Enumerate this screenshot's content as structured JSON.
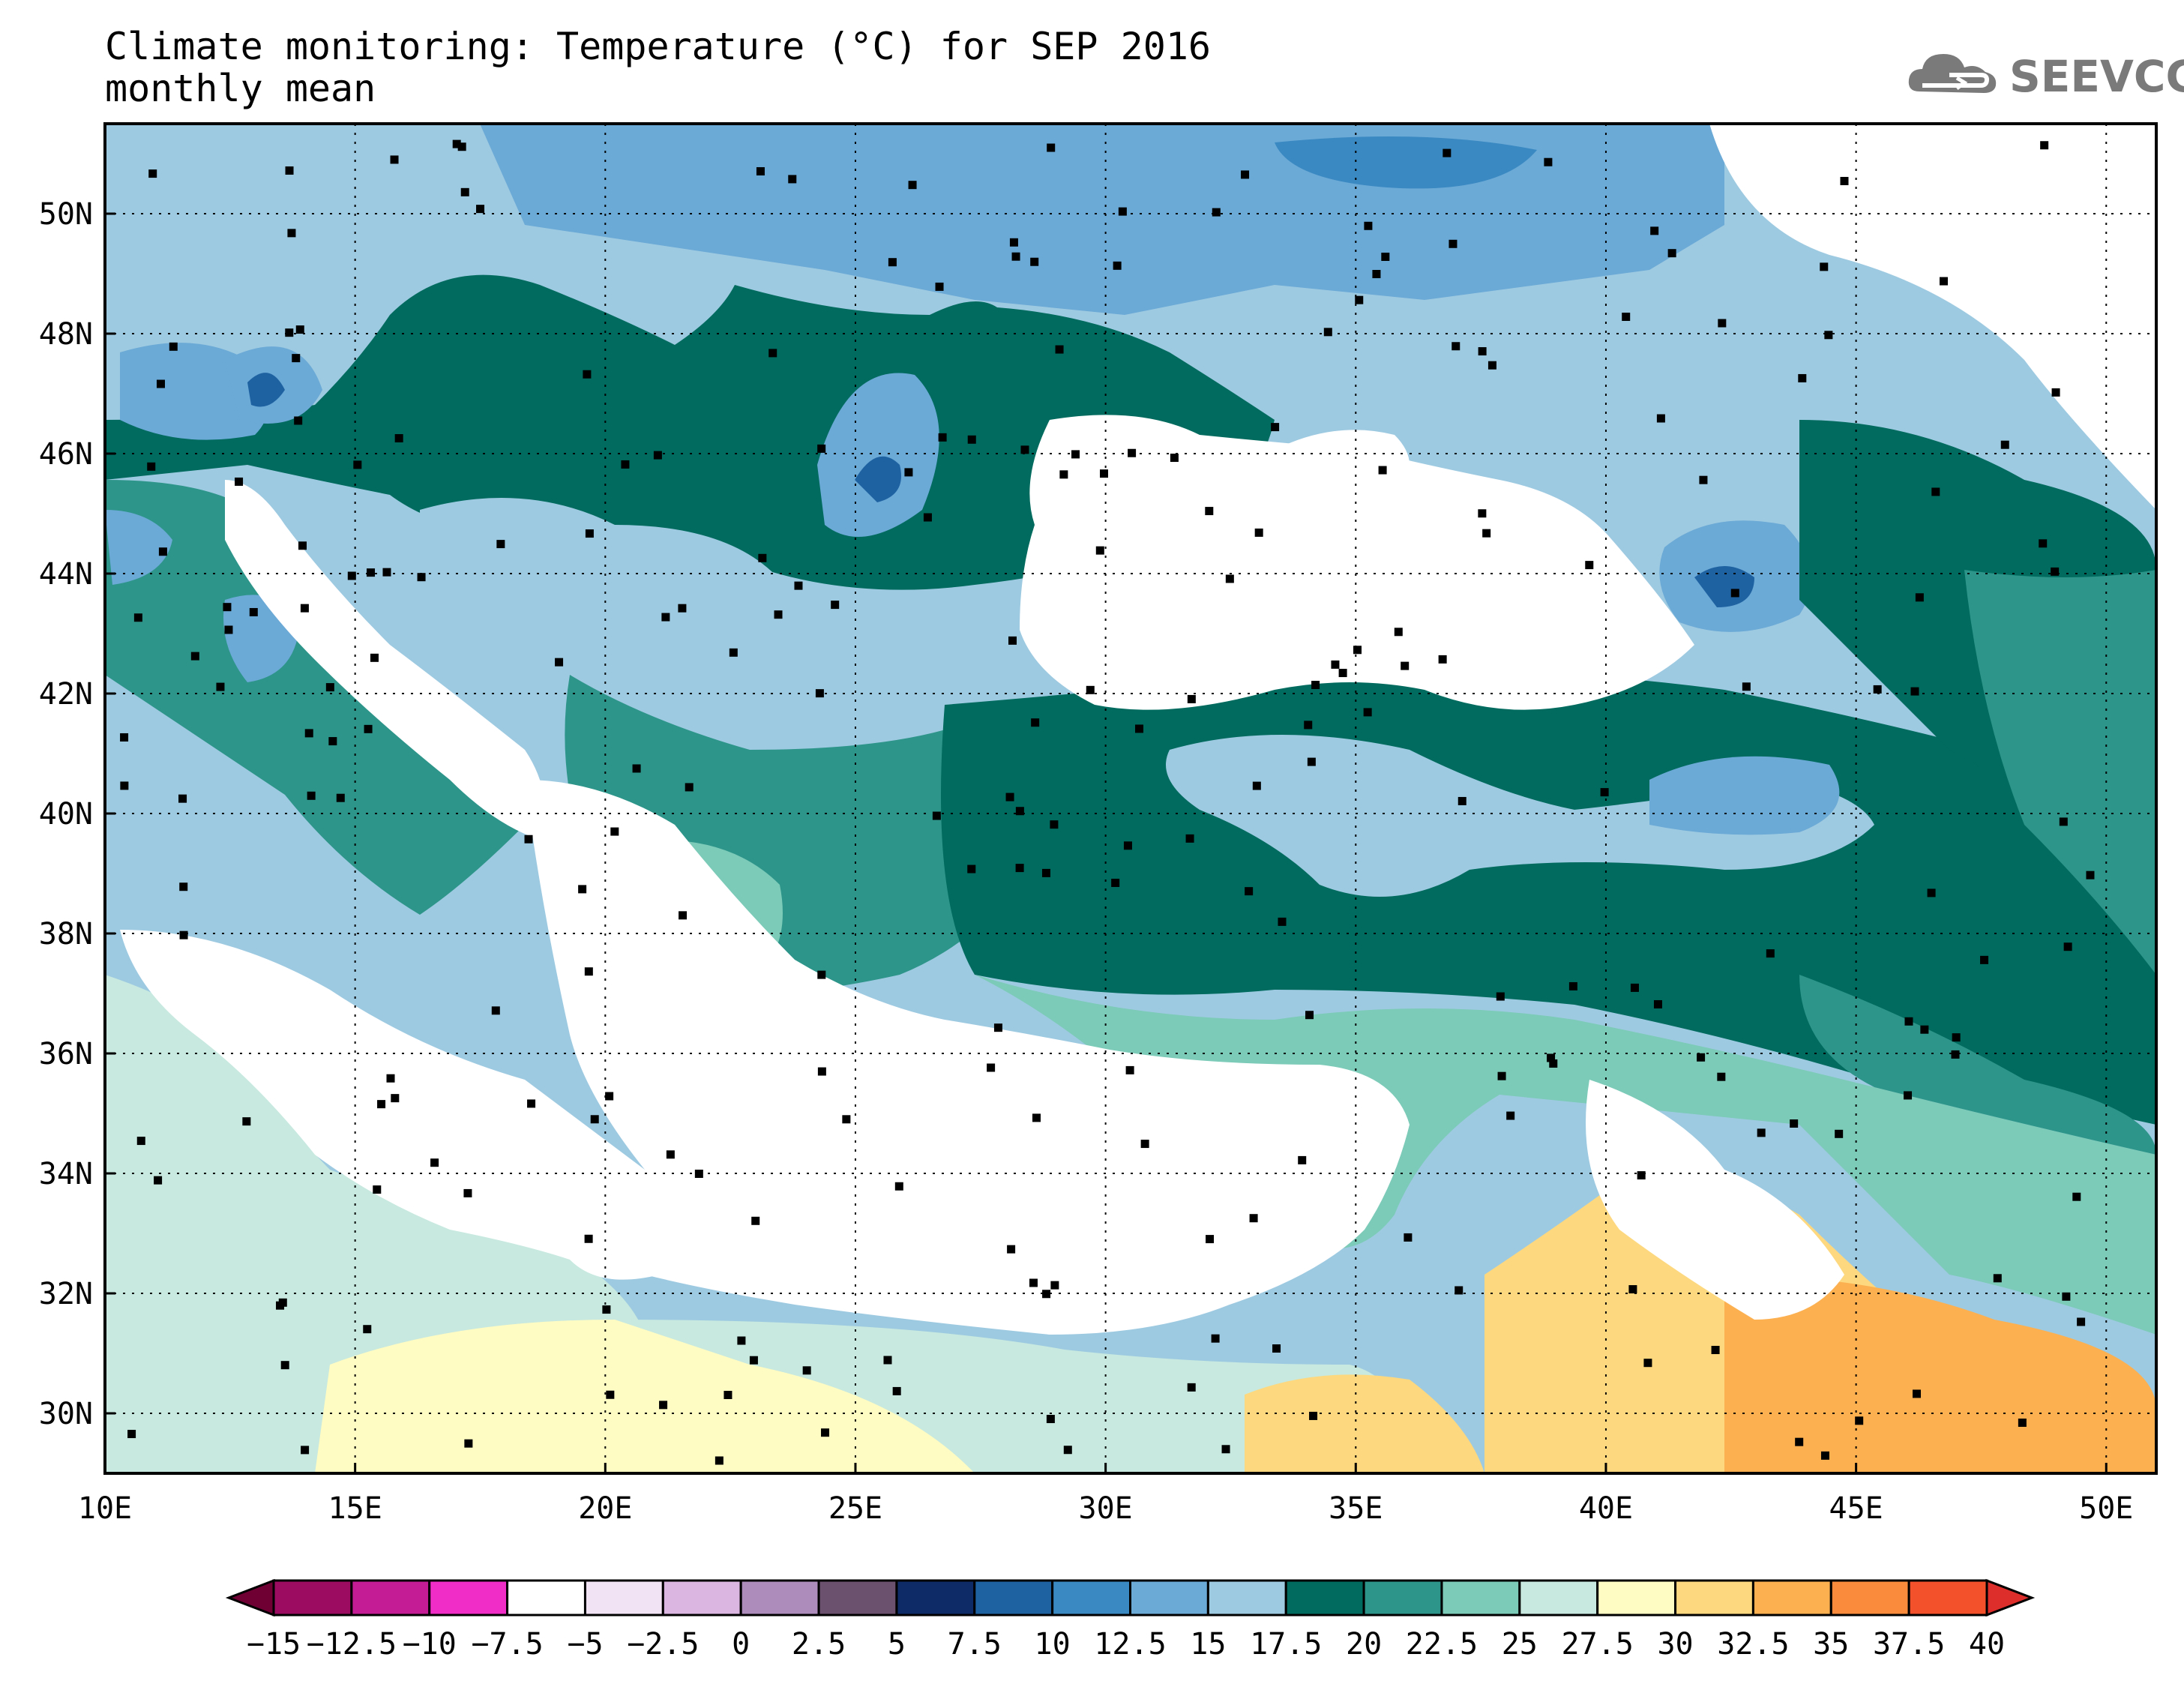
{
  "title": {
    "line1": "Climate monitoring: Temperature (°C) for SEP 2016",
    "line2": "monthly mean"
  },
  "logo": {
    "text": "SEEVCCC",
    "icon": "cloud-logo-icon",
    "color": "#7a7a7a"
  },
  "map": {
    "lon_range": [
      10,
      51
    ],
    "lat_range": [
      29,
      51.5
    ],
    "x_ticks": [
      "10E",
      "15E",
      "20E",
      "25E",
      "30E",
      "35E",
      "40E",
      "45E",
      "50E"
    ],
    "x_tick_values": [
      10,
      15,
      20,
      25,
      30,
      35,
      40,
      45,
      50
    ],
    "y_ticks": [
      "30N",
      "32N",
      "34N",
      "36N",
      "38N",
      "40N",
      "42N",
      "44N",
      "46N",
      "48N",
      "50N"
    ],
    "y_tick_values": [
      30,
      32,
      34,
      36,
      38,
      40,
      42,
      44,
      46,
      48,
      50
    ],
    "grid": "dotted",
    "station_markers": true
  },
  "colorbar": {
    "labels": [
      "−15",
      "−12.5",
      "−10",
      "−7.5",
      "−5",
      "−2.5",
      "0",
      "2.5",
      "5",
      "7.5",
      "10",
      "12.5",
      "15",
      "17.5",
      "20",
      "22.5",
      "25",
      "27.5",
      "30",
      "32.5",
      "35",
      "37.5",
      "40"
    ],
    "colors": [
      "#6e0033",
      "#9c0d62",
      "#c41c94",
      "#f12dc8",
      "#ffffff",
      "#f2e3f4",
      "#dab6e0",
      "#ad8bbb",
      "#6b516e",
      "#0e2a67",
      "#1f62a2",
      "#3a89c2",
      "#6ba9d6",
      "#9ecae1",
      "#006b5e",
      "#2e958a",
      "#7ccab8",
      "#c7e9df",
      "#fefbc3",
      "#fdd87e",
      "#fcb050",
      "#fa8a3c",
      "#f3512b",
      "#de2e2b"
    ]
  }
}
